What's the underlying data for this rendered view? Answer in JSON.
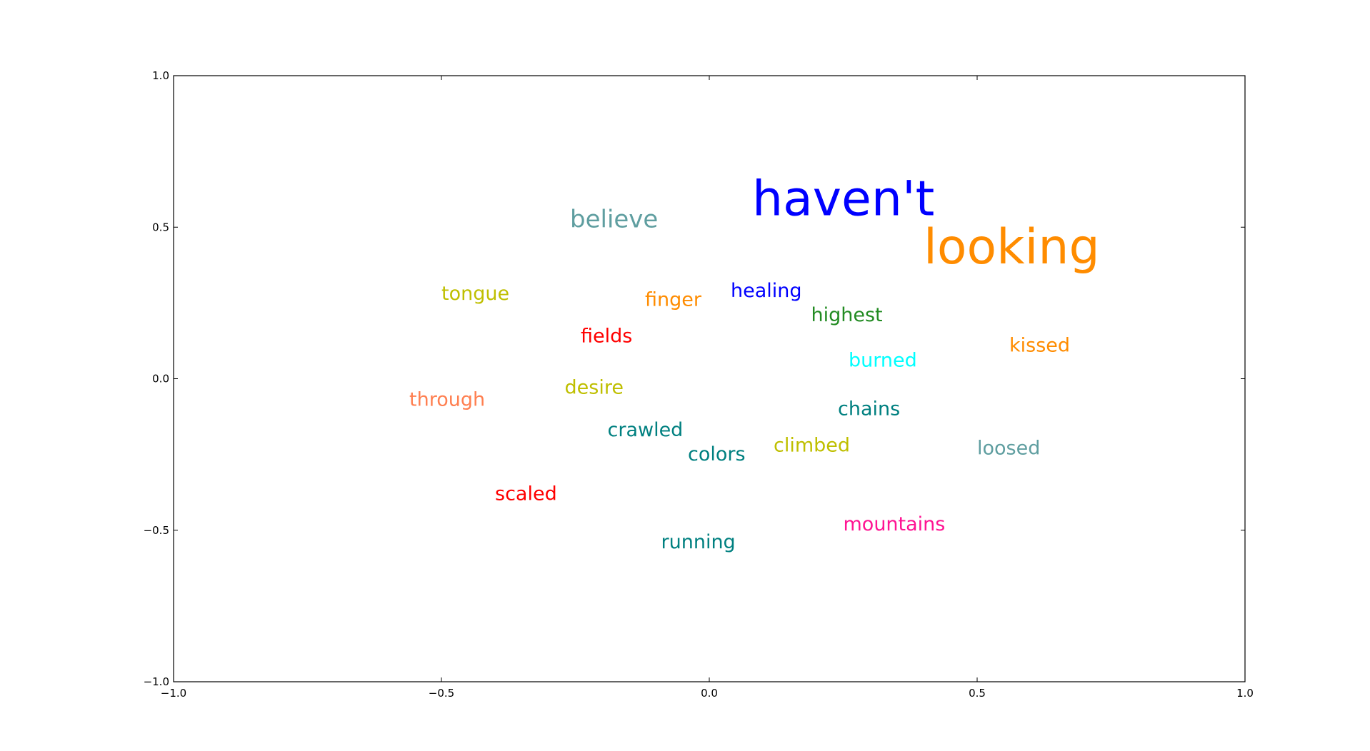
{
  "chart_data": {
    "type": "scatter",
    "title": "",
    "xlabel": "",
    "ylabel": "",
    "xlim": [
      -1.0,
      1.0
    ],
    "ylim": [
      -1.0,
      1.0
    ],
    "grid": false,
    "x_ticks": [
      {
        "value": -1.0,
        "label": "−1.0"
      },
      {
        "value": -0.5,
        "label": "−0.5"
      },
      {
        "value": 0.0,
        "label": "0.0"
      },
      {
        "value": 0.5,
        "label": "0.5"
      },
      {
        "value": 1.0,
        "label": "1.0"
      }
    ],
    "y_ticks": [
      {
        "value": -1.0,
        "label": "−1.0"
      },
      {
        "value": -0.5,
        "label": "−0.5"
      },
      {
        "value": 0.0,
        "label": "0.0"
      },
      {
        "value": 0.5,
        "label": "0.5"
      },
      {
        "value": 1.0,
        "label": "1.0"
      }
    ],
    "points": [
      {
        "label": "haven't",
        "x": 0.08,
        "y": 0.54,
        "color": "#0000ff",
        "emphasis": 3
      },
      {
        "label": "looking",
        "x": 0.4,
        "y": 0.38,
        "color": "#ff8c00",
        "emphasis": 3
      },
      {
        "label": "believe",
        "x": -0.26,
        "y": 0.5,
        "color": "#5f9ea0",
        "emphasis": 2
      },
      {
        "label": "tongue",
        "x": -0.5,
        "y": 0.26,
        "color": "#bfbf00",
        "emphasis": 1
      },
      {
        "label": "finger",
        "x": -0.12,
        "y": 0.24,
        "color": "#ff8c00",
        "emphasis": 1
      },
      {
        "label": "healing",
        "x": 0.04,
        "y": 0.27,
        "color": "#0000ff",
        "emphasis": 1
      },
      {
        "label": "highest",
        "x": 0.19,
        "y": 0.19,
        "color": "#228b22",
        "emphasis": 1
      },
      {
        "label": "fields",
        "x": -0.24,
        "y": 0.12,
        "color": "#ff0000",
        "emphasis": 1
      },
      {
        "label": "kissed",
        "x": 0.56,
        "y": 0.09,
        "color": "#ff8c00",
        "emphasis": 1
      },
      {
        "label": "burned",
        "x": 0.26,
        "y": 0.04,
        "color": "#00ffff",
        "emphasis": 1
      },
      {
        "label": "desire",
        "x": -0.27,
        "y": -0.05,
        "color": "#bfbf00",
        "emphasis": 1
      },
      {
        "label": "through",
        "x": -0.56,
        "y": -0.09,
        "color": "#ff7f50",
        "emphasis": 1
      },
      {
        "label": "chains",
        "x": 0.24,
        "y": -0.12,
        "color": "#008080",
        "emphasis": 1
      },
      {
        "label": "crawled",
        "x": -0.19,
        "y": -0.19,
        "color": "#008080",
        "emphasis": 1
      },
      {
        "label": "climbed",
        "x": 0.12,
        "y": -0.24,
        "color": "#bfbf00",
        "emphasis": 1
      },
      {
        "label": "colors",
        "x": -0.04,
        "y": -0.27,
        "color": "#008080",
        "emphasis": 1
      },
      {
        "label": "loosed",
        "x": 0.5,
        "y": -0.25,
        "color": "#5f9ea0",
        "emphasis": 1
      },
      {
        "label": "scaled",
        "x": -0.4,
        "y": -0.4,
        "color": "#ff0000",
        "emphasis": 1
      },
      {
        "label": "mountains",
        "x": 0.25,
        "y": -0.5,
        "color": "#ff1493",
        "emphasis": 1
      },
      {
        "label": "running",
        "x": -0.09,
        "y": -0.56,
        "color": "#008080",
        "emphasis": 1
      }
    ]
  }
}
